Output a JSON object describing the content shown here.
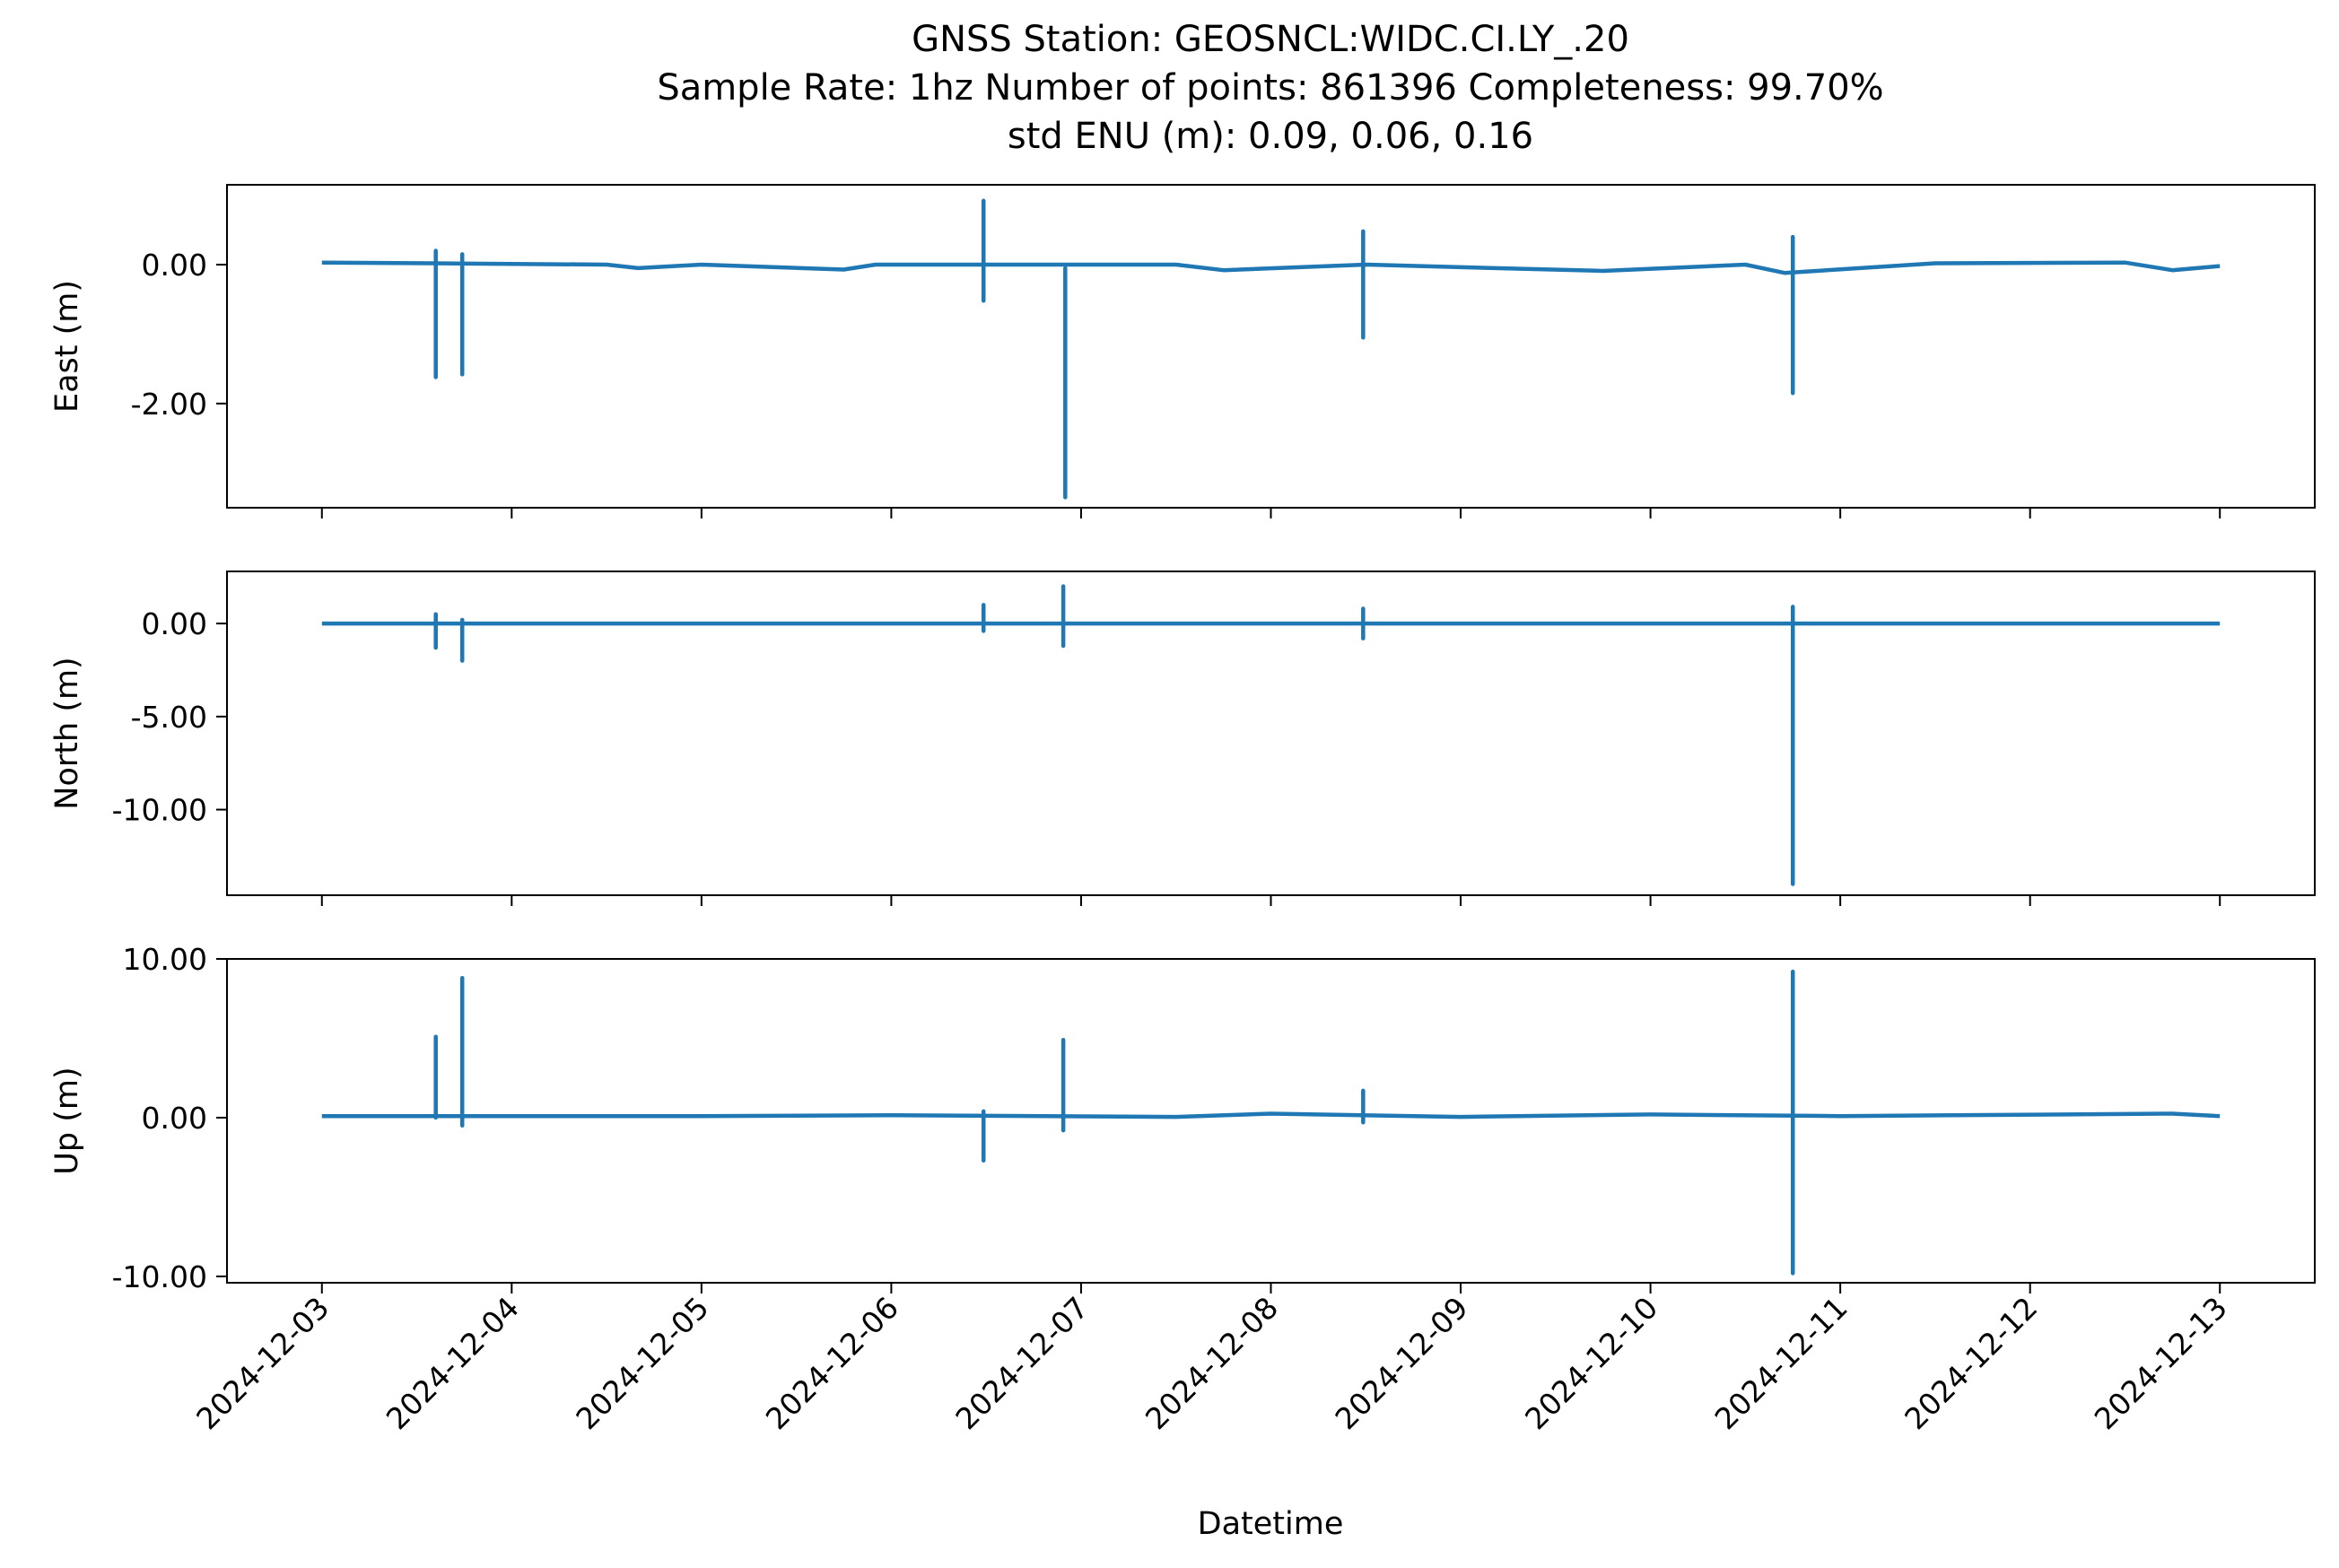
{
  "figure": {
    "title_lines": [
      "GNSS Station: GEOSNCL:WIDC.CI.LY_.20",
      "Sample Rate: 1hz   Number of points: 861396    Completeness:  99.70%",
      "std ENU (m):  0.09, 0.06, 0.16"
    ],
    "xlabel": "Datetime",
    "line_color": "#1f77b4"
  },
  "chart_data": [
    {
      "type": "line",
      "ylabel": "East (m)",
      "x_range": [
        "2024-12-02T12:00",
        "2024-12-13T12:00"
      ],
      "ylim": [
        -3.5,
        1.15
      ],
      "yticks": [
        0,
        -2
      ],
      "ytick_labels": [
        "0.00",
        "-2.00"
      ],
      "series": [
        {
          "baseline": [
            [
              "2024-12-03T00:00",
              0.03
            ],
            [
              "2024-12-03T14:00",
              0.02
            ],
            [
              "2024-12-04T12:00",
              0.0
            ],
            [
              "2024-12-04T16:00",
              -0.05
            ],
            [
              "2024-12-05T00:00",
              0.0
            ],
            [
              "2024-12-05T18:00",
              -0.07
            ],
            [
              "2024-12-05T22:00",
              0.0
            ],
            [
              "2024-12-06T12:00",
              0.0
            ],
            [
              "2024-12-07T12:00",
              0.0
            ],
            [
              "2024-12-07T18:00",
              -0.08
            ],
            [
              "2024-12-08T12:00",
              0.0
            ],
            [
              "2024-12-08T22:00",
              -0.03
            ],
            [
              "2024-12-09T18:00",
              -0.09
            ],
            [
              "2024-12-10T12:00",
              0.0
            ],
            [
              "2024-12-10T17:00",
              -0.12
            ],
            [
              "2024-12-11T12:00",
              0.02
            ],
            [
              "2024-12-12T12:00",
              0.03
            ],
            [
              "2024-12-12T18:00",
              -0.08
            ],
            [
              "2024-12-13T00:00",
              -0.02
            ]
          ],
          "spikes": [
            [
              "2024-12-03T14:24",
              0.2,
              -1.62
            ],
            [
              "2024-12-03T17:45",
              0.15,
              -1.58
            ],
            [
              "2024-12-06T11:40",
              0.92,
              -0.52
            ],
            [
              "2024-12-06T22:00",
              -0.05,
              -3.35
            ],
            [
              "2024-12-08T11:40",
              0.48,
              -1.05
            ],
            [
              "2024-12-10T18:00",
              0.4,
              -1.85
            ]
          ]
        }
      ]
    },
    {
      "type": "line",
      "ylabel": "North (m)",
      "x_range": [
        "2024-12-02T12:00",
        "2024-12-13T12:00"
      ],
      "ylim": [
        -14.6,
        2.8
      ],
      "yticks": [
        0,
        -5,
        -10
      ],
      "ytick_labels": [
        "0.00",
        "-5.00",
        "-10.00"
      ],
      "series": [
        {
          "baseline": [
            [
              "2024-12-03T00:00",
              0.0
            ],
            [
              "2024-12-13T00:00",
              0.0
            ]
          ],
          "spikes": [
            [
              "2024-12-03T14:24",
              0.5,
              -1.3
            ],
            [
              "2024-12-03T17:45",
              0.2,
              -2.0
            ],
            [
              "2024-12-06T11:40",
              1.0,
              -0.4
            ],
            [
              "2024-12-06T21:45",
              2.0,
              -1.2
            ],
            [
              "2024-12-08T11:40",
              0.8,
              -0.8
            ],
            [
              "2024-12-10T18:00",
              0.9,
              -14.0
            ]
          ]
        }
      ]
    },
    {
      "type": "line",
      "ylabel": "Up (m)",
      "x_range": [
        "2024-12-02T12:00",
        "2024-12-13T12:00"
      ],
      "ylim": [
        -10.4,
        10.0
      ],
      "yticks": [
        10,
        0,
        -10
      ],
      "ytick_labels": [
        "10.00",
        "0.00",
        "-10.00"
      ],
      "series": [
        {
          "baseline": [
            [
              "2024-12-03T00:00",
              0.1
            ],
            [
              "2024-12-05T00:00",
              0.1
            ],
            [
              "2024-12-06T00:00",
              0.15
            ],
            [
              "2024-12-07T12:00",
              0.05
            ],
            [
              "2024-12-08T00:00",
              0.25
            ],
            [
              "2024-12-09T00:00",
              0.05
            ],
            [
              "2024-12-10T00:00",
              0.2
            ],
            [
              "2024-12-11T00:00",
              0.1
            ],
            [
              "2024-12-12T18:00",
              0.25
            ],
            [
              "2024-12-13T00:00",
              0.1
            ]
          ],
          "spikes": [
            [
              "2024-12-03T14:24",
              5.1,
              0.0
            ],
            [
              "2024-12-03T17:45",
              8.8,
              -0.5
            ],
            [
              "2024-12-06T11:40",
              0.4,
              -2.7
            ],
            [
              "2024-12-06T21:45",
              4.9,
              -0.8
            ],
            [
              "2024-12-08T11:40",
              1.7,
              -0.3
            ],
            [
              "2024-12-10T18:00",
              9.2,
              -9.8
            ]
          ]
        }
      ]
    }
  ],
  "xticks": [
    "2024-12-03",
    "2024-12-04",
    "2024-12-05",
    "2024-12-06",
    "2024-12-07",
    "2024-12-08",
    "2024-12-09",
    "2024-12-10",
    "2024-12-11",
    "2024-12-12",
    "2024-12-13"
  ]
}
